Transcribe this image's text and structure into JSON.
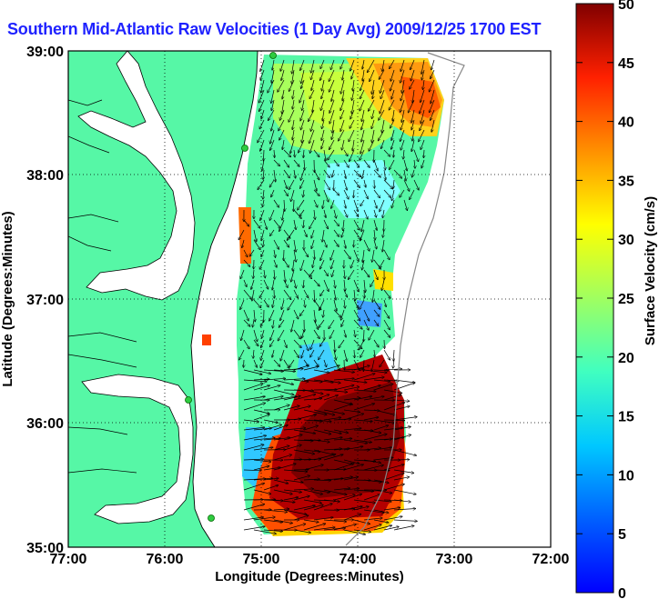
{
  "title": "Southern Mid-Atlantic Raw Velocities (1 Day Avg) 2009/12/25 1700 EST",
  "axes": {
    "xlabel": "Longitude (Degrees:Minutes)",
    "ylabel": "Latitude (Degrees:Minutes)",
    "xticks": [
      "77:00",
      "76:00",
      "75:00",
      "74:00",
      "73:00",
      "72:00"
    ],
    "yticks": [
      "39:00",
      "38:00",
      "37:00",
      "36:00",
      "35:00"
    ],
    "grid": "dotted"
  },
  "colorbar": {
    "label": "Surface Velocity (cm/s)",
    "ticks": [
      "0",
      "5",
      "10",
      "15",
      "20",
      "25",
      "30",
      "35",
      "40",
      "45",
      "50"
    ],
    "range": [
      0,
      50
    ],
    "colormap": "jet"
  },
  "colors": {
    "land": "#56f7a6",
    "title": "#1f22ff",
    "station": "#2ecc40"
  }
}
